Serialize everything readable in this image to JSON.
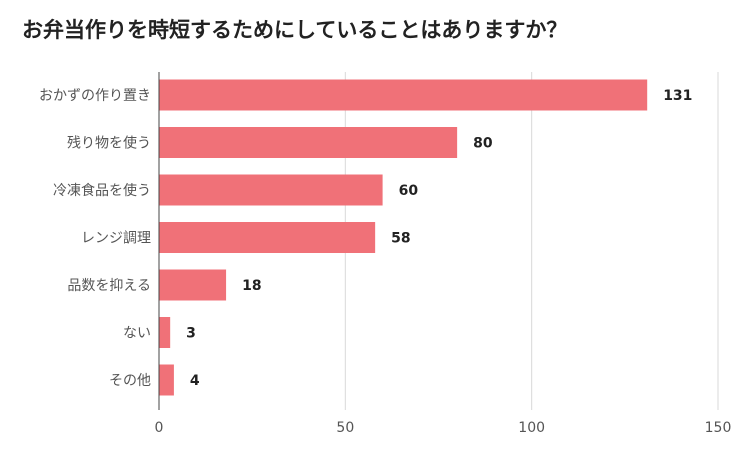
{
  "chart_data": {
    "type": "bar",
    "orientation": "horizontal",
    "title": "お弁当作りを時短するためにしていることはありますか？",
    "categories": [
      "おかずの作り置き",
      "残り物を使う",
      "冷凍食品を使う",
      "レンジ調理",
      "品数を抑える",
      "ない",
      "その他"
    ],
    "values": [
      131,
      80,
      60,
      58,
      18,
      3,
      4
    ],
    "xlim": [
      0,
      150
    ],
    "xticks": [
      0,
      50,
      100,
      150
    ],
    "xlabel": "",
    "ylabel": "",
    "grid": true,
    "legend": "none",
    "bar_color": "#f07178",
    "grid_color": "#d9d9d9"
  }
}
